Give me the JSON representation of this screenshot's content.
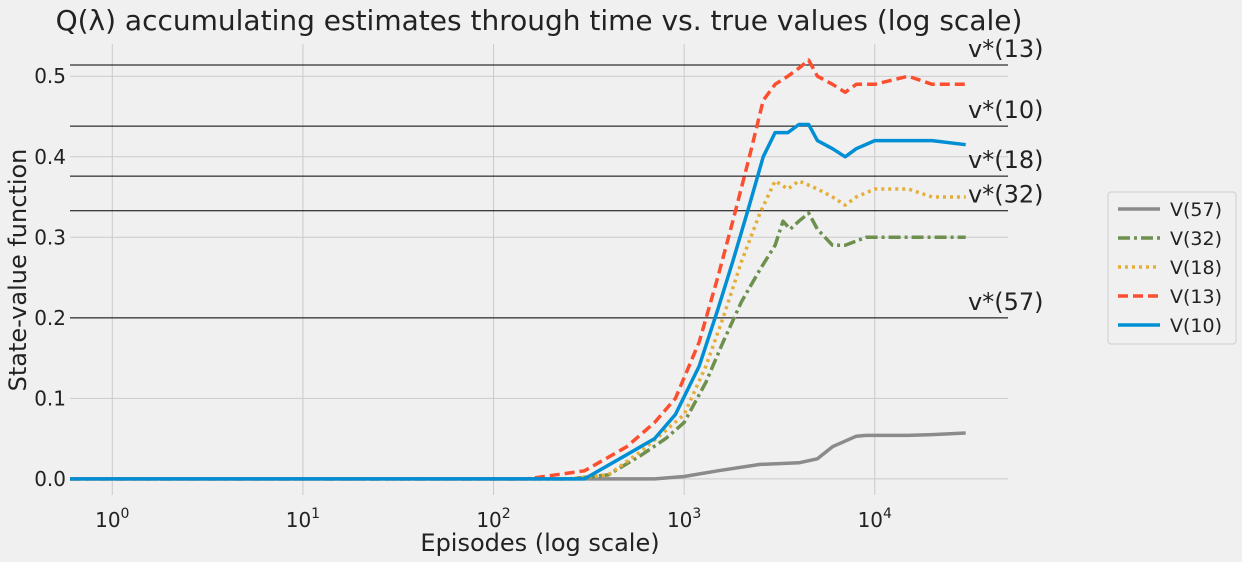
{
  "chart_data": {
    "type": "line",
    "title": "Q(λ) accumulating estimates through time vs. true values (log scale)",
    "xlabel": "Episodes (log scale)",
    "ylabel": "State-value function",
    "xscale": "log",
    "xlim": [
      0.6,
      50000
    ],
    "ylim": [
      -0.02,
      0.54
    ],
    "xticks": [
      {
        "base": "10",
        "exp": "0",
        "value": 1
      },
      {
        "base": "10",
        "exp": "1",
        "value": 10
      },
      {
        "base": "10",
        "exp": "2",
        "value": 100
      },
      {
        "base": "10",
        "exp": "3",
        "value": 1000
      },
      {
        "base": "10",
        "exp": "4",
        "value": 10000
      }
    ],
    "yticks": [
      "0.0",
      "0.1",
      "0.2",
      "0.3",
      "0.4",
      "0.5"
    ],
    "grid": true,
    "legend_position": "right",
    "true_values": [
      {
        "label": "v*(13)",
        "value": 0.514
      },
      {
        "label": "v*(10)",
        "value": 0.438
      },
      {
        "label": "v*(18)",
        "value": 0.376
      },
      {
        "label": "v*(32)",
        "value": 0.333
      },
      {
        "label": "v*(57)",
        "value": 0.2
      }
    ],
    "series": [
      {
        "name": "V(57)",
        "color": "#8b8b8b",
        "dash": "solid",
        "points": [
          [
            0.6,
            0
          ],
          [
            700,
            0
          ],
          [
            1000,
            0.003
          ],
          [
            1500,
            0.01
          ],
          [
            2500,
            0.018
          ],
          [
            4000,
            0.02
          ],
          [
            5000,
            0.025
          ],
          [
            6000,
            0.04
          ],
          [
            8000,
            0.053
          ],
          [
            9000,
            0.054
          ],
          [
            15000,
            0.054
          ],
          [
            20000,
            0.055
          ],
          [
            30000,
            0.057
          ]
        ]
      },
      {
        "name": "V(32)",
        "color": "#6d904f",
        "dash": "dashdot",
        "points": [
          [
            0.6,
            0
          ],
          [
            250,
            0
          ],
          [
            400,
            0.005
          ],
          [
            600,
            0.03
          ],
          [
            800,
            0.05
          ],
          [
            1000,
            0.07
          ],
          [
            1300,
            0.12
          ],
          [
            1600,
            0.17
          ],
          [
            2000,
            0.22
          ],
          [
            2500,
            0.26
          ],
          [
            3000,
            0.29
          ],
          [
            3300,
            0.32
          ],
          [
            3600,
            0.31
          ],
          [
            4000,
            0.32
          ],
          [
            4500,
            0.33
          ],
          [
            5000,
            0.31
          ],
          [
            6000,
            0.29
          ],
          [
            7000,
            0.29
          ],
          [
            9000,
            0.3
          ],
          [
            15000,
            0.3
          ],
          [
            30000,
            0.3
          ]
        ]
      },
      {
        "name": "V(18)",
        "color": "#e5ae38",
        "dash": "dotted",
        "points": [
          [
            0.6,
            0
          ],
          [
            250,
            0
          ],
          [
            400,
            0.005
          ],
          [
            600,
            0.035
          ],
          [
            800,
            0.06
          ],
          [
            1000,
            0.08
          ],
          [
            1300,
            0.14
          ],
          [
            1600,
            0.2
          ],
          [
            2000,
            0.27
          ],
          [
            2500,
            0.33
          ],
          [
            3000,
            0.37
          ],
          [
            3500,
            0.36
          ],
          [
            4000,
            0.37
          ],
          [
            5000,
            0.36
          ],
          [
            6000,
            0.35
          ],
          [
            7000,
            0.34
          ],
          [
            8000,
            0.35
          ],
          [
            10000,
            0.36
          ],
          [
            15000,
            0.36
          ],
          [
            20000,
            0.35
          ],
          [
            30000,
            0.35
          ]
        ]
      },
      {
        "name": "V(13)",
        "color": "#fc4f30",
        "dash": "dashed",
        "points": [
          [
            0.6,
            0
          ],
          [
            150,
            0
          ],
          [
            300,
            0.01
          ],
          [
            500,
            0.04
          ],
          [
            700,
            0.07
          ],
          [
            900,
            0.1
          ],
          [
            1200,
            0.17
          ],
          [
            1500,
            0.25
          ],
          [
            1800,
            0.32
          ],
          [
            2200,
            0.4
          ],
          [
            2600,
            0.47
          ],
          [
            3000,
            0.49
          ],
          [
            3500,
            0.5
          ],
          [
            4000,
            0.51
          ],
          [
            4500,
            0.52
          ],
          [
            5000,
            0.5
          ],
          [
            6000,
            0.49
          ],
          [
            7000,
            0.48
          ],
          [
            8000,
            0.49
          ],
          [
            10000,
            0.49
          ],
          [
            15000,
            0.5
          ],
          [
            20000,
            0.49
          ],
          [
            30000,
            0.49
          ]
        ]
      },
      {
        "name": "V(10)",
        "color": "#008fd5",
        "dash": "solid",
        "points": [
          [
            0.6,
            0
          ],
          [
            300,
            0
          ],
          [
            500,
            0.03
          ],
          [
            700,
            0.05
          ],
          [
            900,
            0.08
          ],
          [
            1200,
            0.14
          ],
          [
            1500,
            0.21
          ],
          [
            1800,
            0.27
          ],
          [
            2200,
            0.34
          ],
          [
            2600,
            0.4
          ],
          [
            3000,
            0.43
          ],
          [
            3500,
            0.43
          ],
          [
            4000,
            0.44
          ],
          [
            4500,
            0.44
          ],
          [
            5000,
            0.42
          ],
          [
            6000,
            0.41
          ],
          [
            7000,
            0.4
          ],
          [
            8000,
            0.41
          ],
          [
            10000,
            0.42
          ],
          [
            15000,
            0.42
          ],
          [
            20000,
            0.42
          ],
          [
            30000,
            0.415
          ]
        ]
      }
    ]
  }
}
